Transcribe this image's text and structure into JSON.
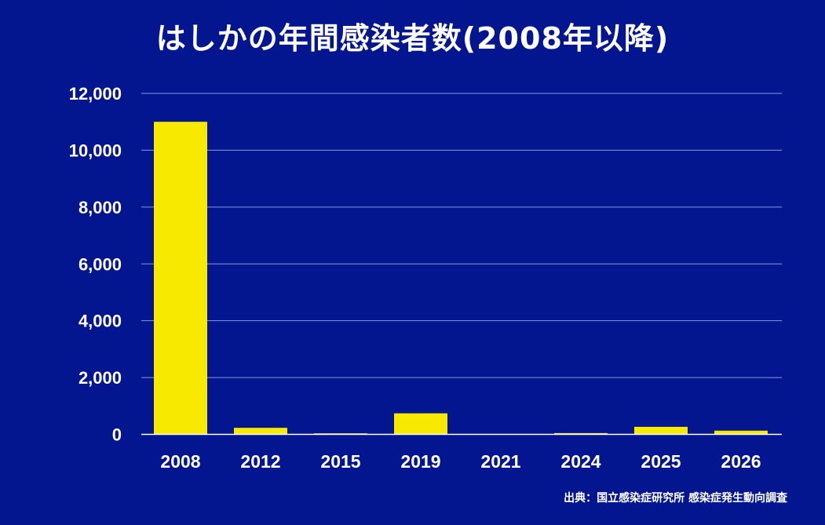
{
  "chart_data": {
    "type": "bar",
    "title": "はしかの年間感染者数(2008年以降)",
    "xlabel": "",
    "ylabel": "",
    "categories": [
      "2008",
      "2012",
      "2015",
      "2019",
      "2021",
      "2024",
      "2025",
      "2026"
    ],
    "values": [
      11000,
      230,
      35,
      740,
      6,
      45,
      265,
      130
    ],
    "ylim": [
      0,
      12000
    ],
    "yticks": [
      0,
      2000,
      4000,
      6000,
      8000,
      10000,
      12000
    ],
    "ytick_labels": [
      "0",
      "2,000",
      "4,000",
      "6,000",
      "8,000",
      "10,000",
      "12,000"
    ],
    "grid": true,
    "source": "出典：国立感染症研究所 感染症発生動向調査",
    "colors": {
      "background": "#03158f",
      "bar": "#f7ea00",
      "grid": "#8a96d8",
      "axis": "#ffffff"
    }
  }
}
